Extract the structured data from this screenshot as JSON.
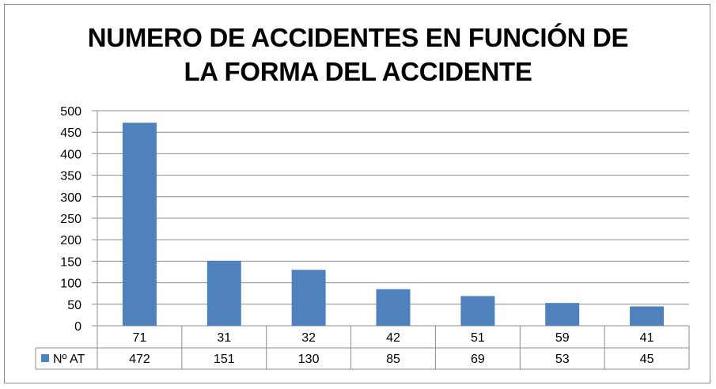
{
  "chart_data": {
    "type": "bar",
    "title_line1": "NUMERO DE ACCIDENTES EN FUNCIÓN DE",
    "title_line2": "LA FORMA DEL ACCIDENTE",
    "categories": [
      "71",
      "31",
      "32",
      "42",
      "51",
      "59",
      "41"
    ],
    "series": [
      {
        "name": "Nº AT",
        "values": [
          472,
          151,
          130,
          85,
          69,
          53,
          45
        ],
        "color": "#4f81bd"
      }
    ],
    "ylim": [
      0,
      500
    ],
    "yticks": [
      0,
      50,
      100,
      150,
      200,
      250,
      300,
      350,
      400,
      450,
      500
    ],
    "grid": true,
    "legend": "data-table"
  }
}
